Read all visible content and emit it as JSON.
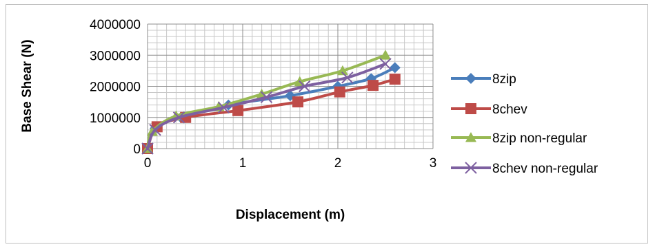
{
  "chart_data": {
    "type": "line",
    "title": "",
    "xlabel": "Displacement (m)",
    "ylabel": "Base Shear (N)",
    "xlim": [
      0,
      3
    ],
    "ylim": [
      0,
      4000000
    ],
    "x_ticks": [
      "0",
      "1",
      "2",
      "3"
    ],
    "y_ticks": [
      "0",
      "1000000",
      "2000000",
      "3000000",
      "4000000"
    ],
    "grid": true,
    "legend_position": "right",
    "series": [
      {
        "name": "8zip",
        "color": "#4a7ebb",
        "marker": "diamond",
        "x": [
          0,
          0.08,
          0.35,
          0.85,
          1.5,
          2.0,
          2.35,
          2.6
        ],
        "y": [
          0,
          650000,
          1000000,
          1400000,
          1700000,
          2000000,
          2250000,
          2600000
        ]
      },
      {
        "name": "8chev",
        "color": "#be4b48",
        "marker": "square",
        "x": [
          0,
          0.1,
          0.4,
          0.95,
          1.58,
          2.02,
          2.37,
          2.6
        ],
        "y": [
          0,
          700000,
          1000000,
          1220000,
          1500000,
          1820000,
          2030000,
          2230000
        ]
      },
      {
        "name": "8zip non-regular",
        "color": "#98b954",
        "marker": "triangle",
        "x": [
          0,
          0.05,
          0.3,
          0.75,
          1.2,
          1.6,
          2.05,
          2.5
        ],
        "y": [
          0,
          550000,
          1050000,
          1350000,
          1750000,
          2150000,
          2500000,
          3000000
        ]
      },
      {
        "name": "8chev non-regular",
        "color": "#7d60a0",
        "marker": "x",
        "x": [
          0,
          0.08,
          0.33,
          0.8,
          1.25,
          1.65,
          2.1,
          2.5
        ],
        "y": [
          0,
          600000,
          1000000,
          1320000,
          1650000,
          2000000,
          2280000,
          2720000
        ]
      }
    ]
  }
}
